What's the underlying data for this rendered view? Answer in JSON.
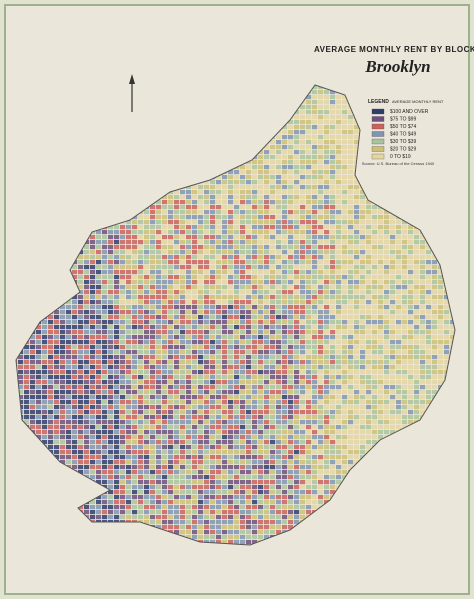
{
  "title": "AVERAGE MONTHLY RENT BY BLOCKS",
  "subtitle": "Brooklyn",
  "legend": {
    "title": "LEGEND",
    "subtitle": "AVERAGE MONTHLY RENT",
    "items": [
      {
        "label": "$100 AND OVER",
        "color": "#2e3c6c"
      },
      {
        "label": "$75 TO $99",
        "color": "#6e4f7e"
      },
      {
        "label": "$50 TO $74",
        "color": "#c9625c"
      },
      {
        "label": "$40 TO $49",
        "color": "#7f95b2"
      },
      {
        "label": "$30 TO $39",
        "color": "#a9c49b"
      },
      {
        "label": "$20 TO $29",
        "color": "#cdbf74"
      },
      {
        "label": "0 TO $19",
        "color": "#e4d6a2"
      }
    ]
  },
  "source": "Source: U.S. Bureau of the Census 1940"
}
